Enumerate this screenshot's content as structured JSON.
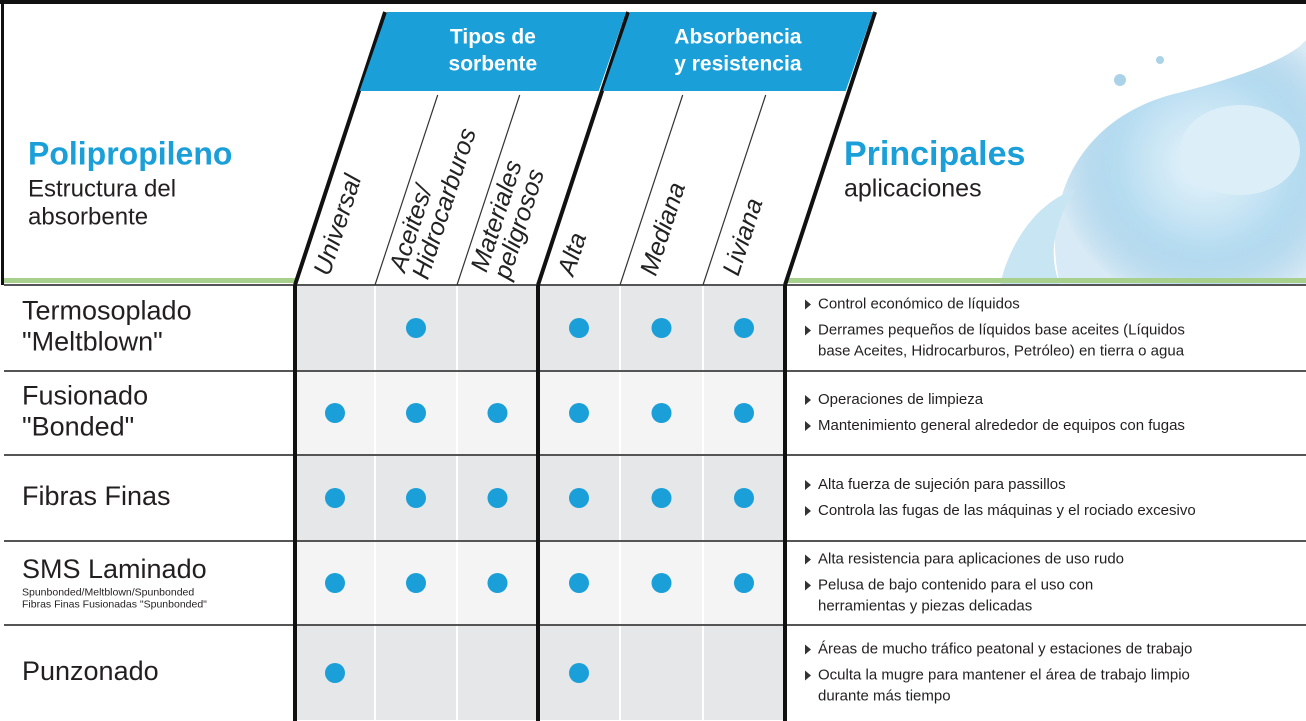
{
  "header": {
    "title": "Polipropileno",
    "subtitle": [
      "Estructura del",
      "absorbente"
    ],
    "groups": [
      [
        "Tipos de",
        "sorbente"
      ],
      [
        "Absorbencia",
        "y resistencia"
      ]
    ],
    "columns": [
      [
        "Universal"
      ],
      [
        "Aceites/",
        "Hidrocarburos"
      ],
      [
        "Materiales",
        "peligrosos"
      ],
      [
        "Alta"
      ],
      [
        "Mediana"
      ],
      [
        "Liviana"
      ]
    ],
    "applications_title": "Principales",
    "applications_subtitle": "aplicaciones"
  },
  "table": {
    "rows": [
      {
        "name": [
          "Termosoplado",
          "\"Meltblown\""
        ],
        "marks": [
          false,
          true,
          false,
          true,
          true,
          true
        ],
        "applications": [
          [
            "Control económico de líquidos"
          ],
          [
            "Derrames pequeños de líquidos base aceites (Líquidos",
            "base Aceites, Hidrocarburos, Petróleo) en tierra o agua"
          ]
        ]
      },
      {
        "name": [
          "Fusionado",
          "\"Bonded\""
        ],
        "marks": [
          true,
          true,
          true,
          true,
          true,
          true
        ],
        "applications": [
          [
            "Operaciones de limpieza"
          ],
          [
            "Mantenimiento general alrededor de equipos con fugas"
          ]
        ]
      },
      {
        "name": [
          "Fibras Finas"
        ],
        "marks": [
          true,
          true,
          true,
          true,
          true,
          true
        ],
        "applications": [
          [
            "Alta fuerza de sujeción para passillos"
          ],
          [
            "Controla las fugas de las máquinas y el rociado excesivo"
          ]
        ]
      },
      {
        "name": [
          "SMS Laminado"
        ],
        "note": [
          "Spunbonded/Meltblown/Spunbonded",
          "Fibras Finas Fusionadas \"Spunbonded\""
        ],
        "marks": [
          true,
          true,
          true,
          true,
          true,
          true
        ],
        "applications": [
          [
            "Alta resistencia para aplicaciones de uso rudo"
          ],
          [
            "Pelusa de bajo contenido para el uso con",
            "herramientas y piezas delicadas"
          ]
        ]
      },
      {
        "name": [
          "Punzonado"
        ],
        "marks": [
          true,
          false,
          false,
          true,
          false,
          false
        ],
        "applications": [
          [
            "Áreas de mucho tráfico peatonal y estaciones de trabajo"
          ],
          [
            "Oculta la mugre para mantener el área de trabajo limpio",
            "durante más tiempo"
          ]
        ]
      }
    ]
  }
}
